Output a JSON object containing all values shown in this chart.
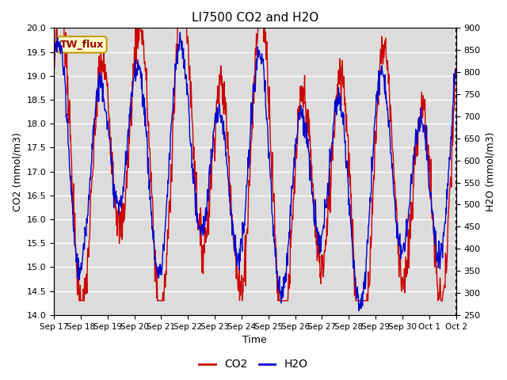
{
  "title": "LI7500 CO2 and H2O",
  "xlabel": "Time",
  "ylabel_left": "CO2 (mmol/m3)",
  "ylabel_right": "H2O (mmol/m3)",
  "co2_ylim": [
    14.0,
    20.0
  ],
  "h2o_ylim": [
    250,
    900
  ],
  "label_text": "TW_flux",
  "label_bg": "#ffffcc",
  "label_border": "#cc9900",
  "line_color_co2": "#cc0000",
  "line_color_h2o": "#0000cc",
  "line_width": 1.0,
  "plot_bg": "#dcdcdc",
  "grid_color": "white",
  "xtick_labels": [
    "Sep 17",
    "Sep 18",
    "Sep 19",
    "Sep 20",
    "Sep 21",
    "Sep 22",
    "Sep 23",
    "Sep 24",
    "Sep 25",
    "Sep 26",
    "Sep 27",
    "Sep 28",
    "Sep 29",
    "Sep 30",
    "Oct 1",
    "Oct 2"
  ],
  "n_points": 960,
  "seed": 7
}
